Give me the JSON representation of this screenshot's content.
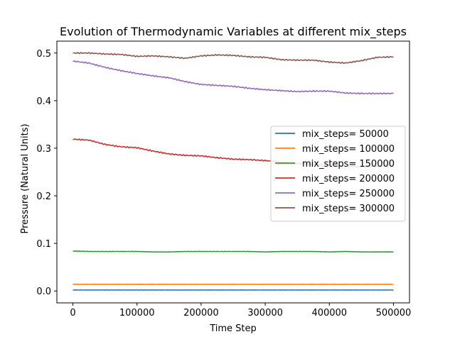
{
  "chart_data": {
    "type": "line",
    "title": "Evolution of Thermodynamic Variables at different mix_steps",
    "xlabel": "Time Step",
    "ylabel": "Pressure (Natural Units)",
    "xlim": [
      -25000,
      525000
    ],
    "ylim": [
      -0.025,
      0.525
    ],
    "xticks": [
      0,
      100000,
      200000,
      300000,
      400000,
      500000
    ],
    "yticks": [
      0.0,
      0.1,
      0.2,
      0.3,
      0.4,
      0.5
    ],
    "xtick_labels": [
      "0",
      "100000",
      "200000",
      "300000",
      "400000",
      "500000"
    ],
    "ytick_labels": [
      "0.0",
      "0.1",
      "0.2",
      "0.3",
      "0.4",
      "0.5"
    ],
    "grid": false,
    "legend_position": "center-right",
    "x": [
      0,
      25000,
      50000,
      75000,
      100000,
      125000,
      150000,
      175000,
      200000,
      225000,
      250000,
      275000,
      300000,
      325000,
      350000,
      375000,
      400000,
      425000,
      450000,
      475000,
      500000
    ],
    "series": [
      {
        "name": "mix_steps= 50000",
        "color": "#1f77b4",
        "values": [
          0.002,
          0.002,
          0.002,
          0.002,
          0.002,
          0.002,
          0.002,
          0.002,
          0.002,
          0.002,
          0.002,
          0.002,
          0.002,
          0.002,
          0.002,
          0.002,
          0.002,
          0.002,
          0.002,
          0.002,
          0.002
        ]
      },
      {
        "name": "mix_steps= 100000",
        "color": "#ff7f0e",
        "values": [
          0.014,
          0.014,
          0.014,
          0.014,
          0.014,
          0.014,
          0.014,
          0.014,
          0.014,
          0.014,
          0.014,
          0.014,
          0.014,
          0.014,
          0.014,
          0.014,
          0.014,
          0.014,
          0.014,
          0.014,
          0.014
        ]
      },
      {
        "name": "mix_steps= 150000",
        "color": "#2ca02c",
        "values": [
          0.084,
          0.083,
          0.083,
          0.083,
          0.083,
          0.082,
          0.082,
          0.083,
          0.083,
          0.083,
          0.083,
          0.083,
          0.082,
          0.083,
          0.083,
          0.083,
          0.082,
          0.083,
          0.082,
          0.082,
          0.082
        ]
      },
      {
        "name": "mix_steps= 200000",
        "color": "#d62728",
        "values": [
          0.319,
          0.317,
          0.308,
          0.303,
          0.301,
          0.294,
          0.288,
          0.285,
          0.284,
          0.28,
          0.277,
          0.276,
          0.274,
          0.271,
          0.268,
          0.266,
          0.264,
          0.262,
          0.261,
          0.262,
          0.263
        ]
      },
      {
        "name": "mix_steps= 250000",
        "color": "#9467bd",
        "values": [
          0.483,
          0.479,
          0.47,
          0.463,
          0.457,
          0.452,
          0.448,
          0.44,
          0.434,
          0.432,
          0.43,
          0.426,
          0.423,
          0.421,
          0.419,
          0.42,
          0.42,
          0.416,
          0.415,
          0.415,
          0.415
        ]
      },
      {
        "name": "mix_steps= 300000",
        "color": "#8c564b",
        "values": [
          0.5,
          0.5,
          0.498,
          0.497,
          0.493,
          0.494,
          0.492,
          0.489,
          0.494,
          0.496,
          0.495,
          0.492,
          0.491,
          0.486,
          0.485,
          0.485,
          0.481,
          0.479,
          0.484,
          0.491,
          0.492
        ]
      }
    ]
  }
}
